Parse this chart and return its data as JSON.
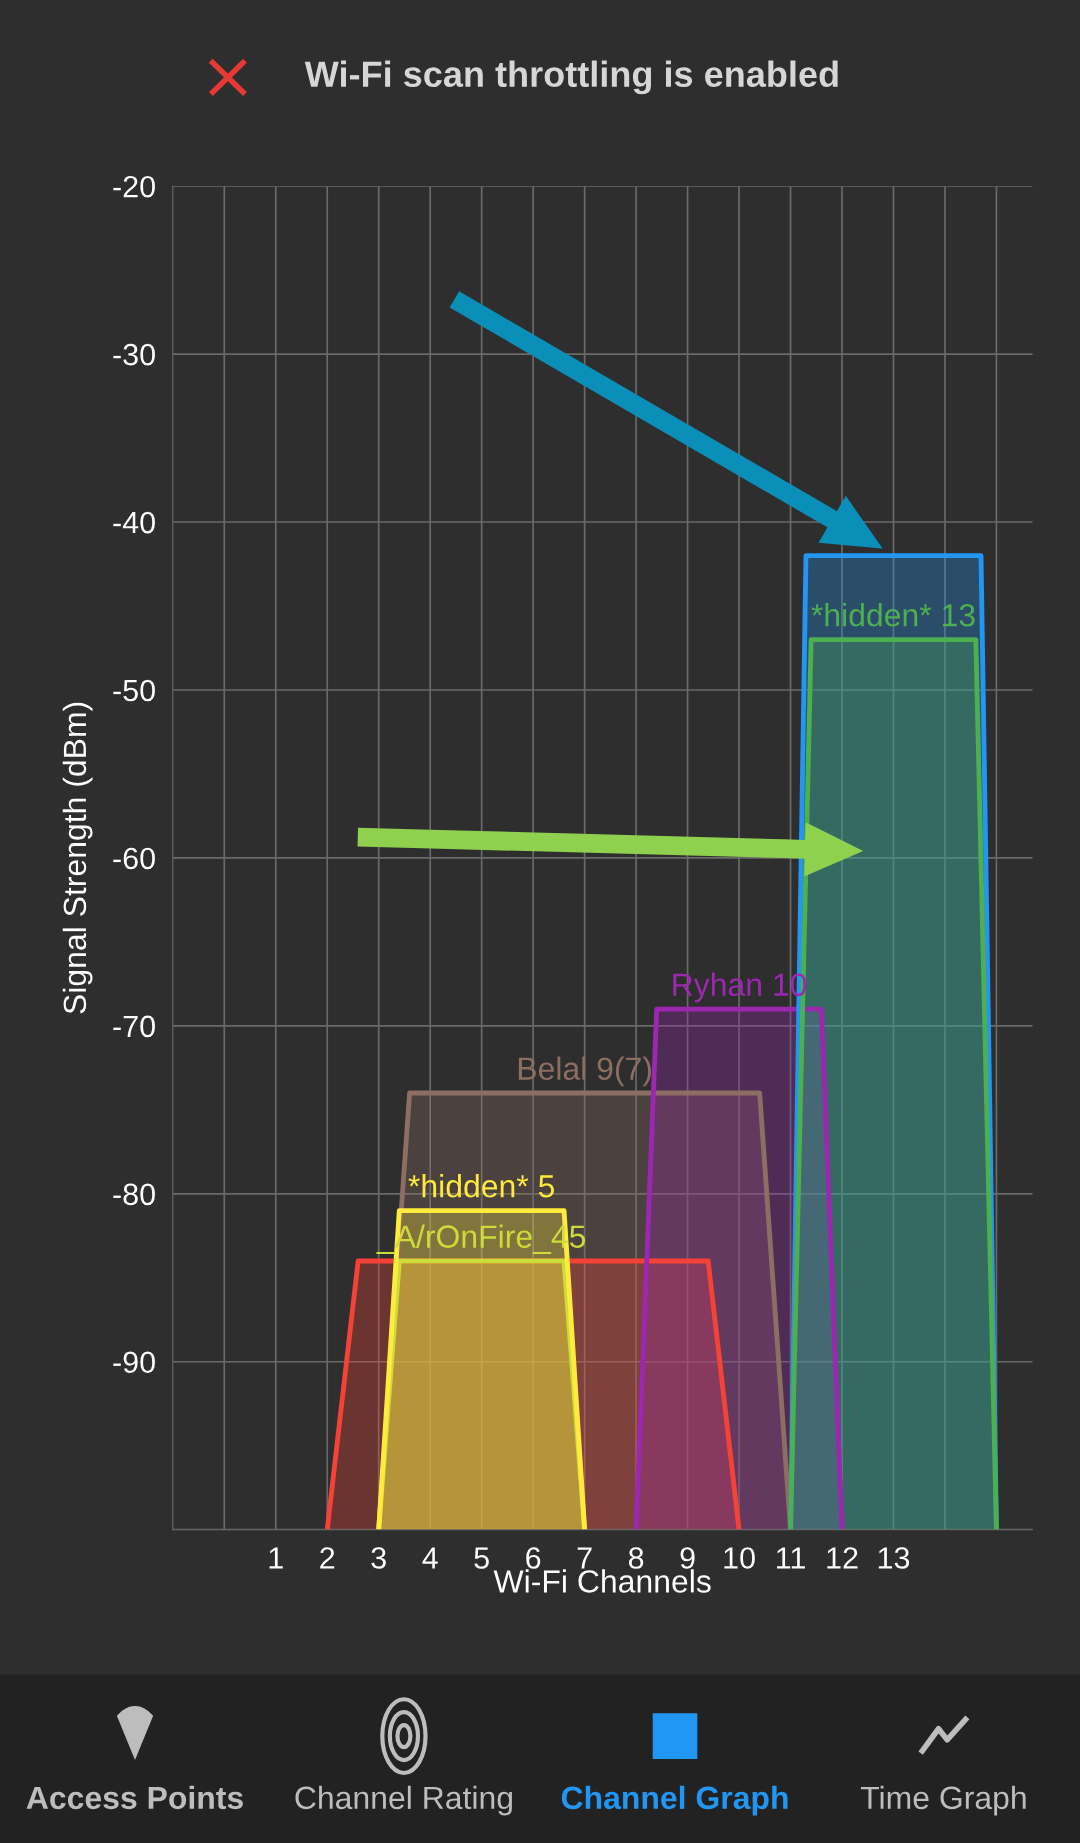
{
  "chart_data": {
    "type": "area",
    "title": "Wi-Fi scan throttling is enabled",
    "xlabel": "Wi-Fi Channels",
    "ylabel": "Signal Strength (dBm)",
    "xlim": [
      -1,
      15.7
    ],
    "ylim": [
      -100,
      -20
    ],
    "xticks": [
      {
        "value": 0,
        "label": null
      },
      1,
      2,
      3,
      4,
      5,
      6,
      7,
      8,
      9,
      10,
      11,
      12,
      13,
      {
        "value": 14,
        "label": null
      },
      {
        "value": 15,
        "label": null
      }
    ],
    "yticks": [
      {
        "value": -100,
        "label": null
      },
      -90,
      -80,
      -70,
      -60,
      -50,
      -40,
      -30,
      -20
    ],
    "grid": true,
    "legend": false,
    "series": [
      {
        "name": "Belal 9(7)",
        "color": "#8d6e63",
        "x": [
          3,
          3.6,
          10.4,
          11
        ],
        "values": [
          -100,
          -74,
          -74,
          -100
        ]
      },
      {
        "color": "#f44336",
        "x": [
          2,
          2.6,
          9.4,
          10
        ],
        "values": [
          -100,
          -84,
          -84,
          -100
        ]
      },
      {
        "name": "_A/rOnFire_45",
        "color": "#cddc39",
        "x": [
          3,
          3.4,
          6.6,
          7
        ],
        "values": [
          -100,
          -84,
          -84,
          -100
        ]
      },
      {
        "name": "*hidden* 5",
        "color": "#ffeb3b",
        "x": [
          3,
          3.4,
          6.6,
          7
        ],
        "values": [
          -100,
          -81,
          -81,
          -100
        ]
      },
      {
        "name": "Ryhan 10",
        "color": "#9c27b0",
        "x": [
          8,
          8.4,
          11.6,
          12
        ],
        "values": [
          -100,
          -69,
          -69,
          -100
        ]
      },
      {
        "color": "#2196f3",
        "x": [
          11,
          11.3,
          14.7,
          15
        ],
        "values": [
          -100,
          -42,
          -42,
          -100
        ]
      },
      {
        "name": "*hidden* 13",
        "color": "#4caf50",
        "x": [
          11,
          11.4,
          14.6,
          15
        ],
        "values": [
          -100,
          -47,
          -47,
          -100
        ]
      }
    ],
    "annotations": [
      "Access Points",
      "Channel Rating",
      "Channel Graph",
      "Time Graph"
    ]
  }
}
